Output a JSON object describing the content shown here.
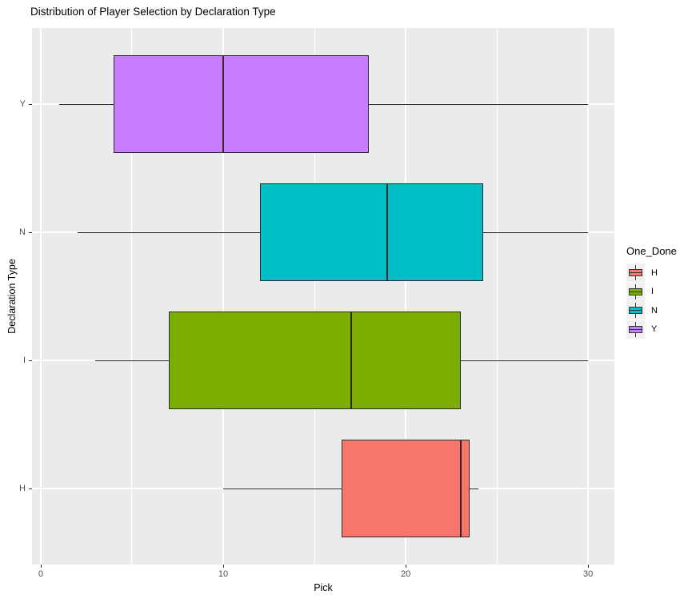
{
  "chart_data": {
    "type": "boxplot",
    "orientation": "horizontal",
    "title": "Distribution of Player Selection by Declaration Type",
    "xlabel": "Pick",
    "ylabel": "Declaration Type",
    "xlim": [
      -0.48,
      31.44
    ],
    "x_major_ticks": [
      0,
      10,
      20,
      30
    ],
    "x_minor_ticks": [
      5,
      15,
      25
    ],
    "categories_top_to_bottom": [
      "Y",
      "N",
      "I",
      "H"
    ],
    "grid": true,
    "panel_bg": "#EBEBEB",
    "grid_color": "#FFFFFF",
    "box_outline": "#2A2A2A",
    "series": [
      {
        "name": "Y",
        "color": "#C77CFF",
        "whisker_min": 1,
        "q1": 4,
        "median": 10,
        "q3": 18,
        "whisker_max": 30
      },
      {
        "name": "N",
        "color": "#00BFC4",
        "whisker_min": 2,
        "q1": 12,
        "median": 19,
        "q3": 24.25,
        "whisker_max": 30
      },
      {
        "name": "I",
        "color": "#7CAE00",
        "whisker_min": 3,
        "q1": 7,
        "median": 17,
        "q3": 23,
        "whisker_max": 30
      },
      {
        "name": "H",
        "color": "#F8766D",
        "whisker_min": 10,
        "q1": 16.5,
        "median": 23,
        "q3": 23.5,
        "whisker_max": 24
      }
    ],
    "legend": {
      "title": "One_Done",
      "position": "right",
      "entries": [
        {
          "label": "H",
          "color": "#F8766D"
        },
        {
          "label": "I",
          "color": "#7CAE00"
        },
        {
          "label": "N",
          "color": "#00BFC4"
        },
        {
          "label": "Y",
          "color": "#C77CFF"
        }
      ]
    }
  }
}
